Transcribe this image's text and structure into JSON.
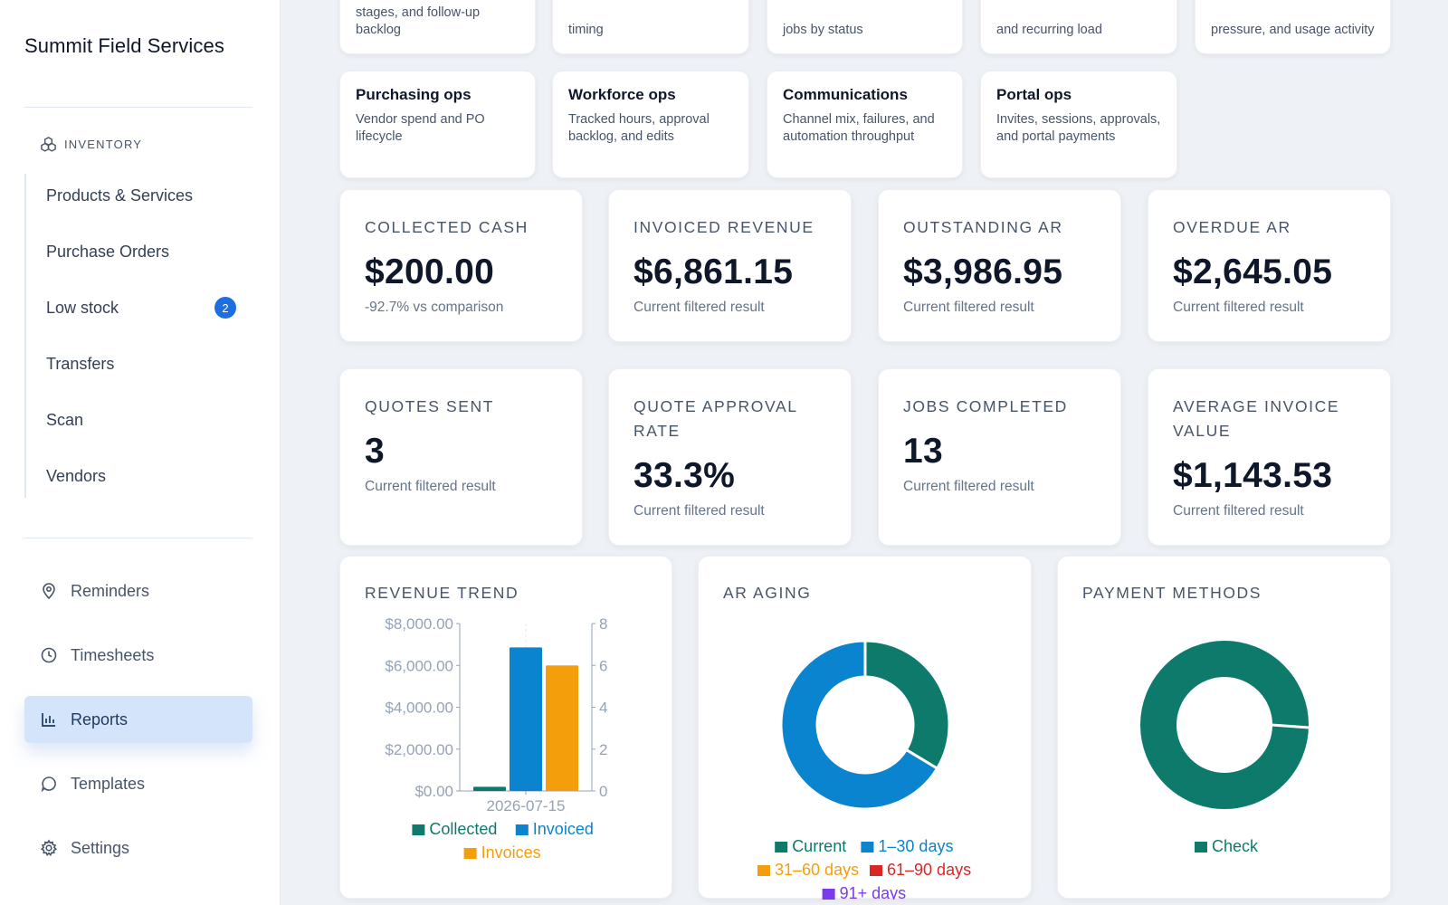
{
  "sidebar": {
    "brand": "Summit Field Services",
    "inventory_label": "INVENTORY",
    "inventory_items": [
      {
        "label": "Products & Services"
      },
      {
        "label": "Purchase Orders"
      },
      {
        "label": "Low stock",
        "badge": "2"
      },
      {
        "label": "Transfers"
      },
      {
        "label": "Scan"
      },
      {
        "label": "Vendors"
      }
    ],
    "nav_items": [
      {
        "label": "Reminders",
        "icon": "map-pin-icon"
      },
      {
        "label": "Timesheets",
        "icon": "clock-icon"
      },
      {
        "label": "Reports",
        "icon": "bar-chart-icon",
        "active": true
      },
      {
        "label": "Templates",
        "icon": "chat-bubble-icon"
      },
      {
        "label": "Settings",
        "icon": "gear-icon"
      }
    ]
  },
  "report_tiles_top_partial": [
    {
      "desc": "stages, and follow-up backlog"
    },
    {
      "desc": "timing"
    },
    {
      "desc": "jobs by status"
    },
    {
      "desc": "and recurring load"
    },
    {
      "desc": "pressure, and usage activity"
    }
  ],
  "report_tiles": [
    {
      "title": "Purchasing ops",
      "desc": "Vendor spend and PO lifecycle"
    },
    {
      "title": "Workforce ops",
      "desc": "Tracked hours, approval backlog, and edits"
    },
    {
      "title": "Communications",
      "desc": "Channel mix, failures, and automation throughput"
    },
    {
      "title": "Portal ops",
      "desc": "Invites, sessions, approvals, and portal payments"
    }
  ],
  "kpis_row1": [
    {
      "label": "COLLECTED CASH",
      "value": "$200.00",
      "sub": "-92.7% vs comparison"
    },
    {
      "label": "INVOICED REVENUE",
      "value": "$6,861.15",
      "sub": "Current filtered result"
    },
    {
      "label": "OUTSTANDING AR",
      "value": "$3,986.95",
      "sub": "Current filtered result"
    },
    {
      "label": "OVERDUE AR",
      "value": "$2,645.05",
      "sub": "Current filtered result"
    }
  ],
  "kpis_row2": [
    {
      "label": "QUOTES SENT",
      "value": "3",
      "sub": "Current filtered result"
    },
    {
      "label": "QUOTE APPROVAL RATE",
      "value": "33.3%",
      "sub": "Current filtered result"
    },
    {
      "label": "JOBS COMPLETED",
      "value": "13",
      "sub": "Current filtered result"
    },
    {
      "label": "AVERAGE INVOICE VALUE",
      "value": "$1,143.53",
      "sub": "Current filtered result"
    }
  ],
  "chart_titles": {
    "revenue_trend": "REVENUE TREND",
    "ar_aging": "AR AGING",
    "payment_methods": "PAYMENT METHODS"
  },
  "colors": {
    "teal": "#0e7a6c",
    "blue": "#0a84cf",
    "orange": "#f59e0b",
    "red": "#dc2626",
    "purple": "#7c3aed",
    "accent": "#1d6fe0"
  },
  "chart_data": [
    {
      "type": "bar",
      "title": "REVENUE TREND",
      "categories": [
        "2026-07-15"
      ],
      "series": [
        {
          "name": "Collected",
          "values": [
            200
          ],
          "axis": "left",
          "color": "#0e7a6c"
        },
        {
          "name": "Invoiced",
          "values": [
            6861.15
          ],
          "axis": "left",
          "color": "#0a84cf"
        },
        {
          "name": "Invoices",
          "values": [
            6
          ],
          "axis": "right",
          "color": "#f59e0b"
        }
      ],
      "y_left_ticks": [
        "$0.00",
        "$2,000.00",
        "$4,000.00",
        "$6,000.00",
        "$8,000.00"
      ],
      "y_right_ticks": [
        "0",
        "2",
        "4",
        "6",
        "8"
      ],
      "ylim_left": [
        0,
        8000
      ],
      "ylim_right": [
        0,
        8
      ],
      "legend_position": "bottom"
    },
    {
      "type": "pie",
      "title": "AR AGING",
      "labels": [
        "Current",
        "1-30 days",
        "31-60 days",
        "61-90 days",
        "91+ days"
      ],
      "legend_labels": [
        "Current",
        "1–30 days",
        "31–60 days",
        "61–90 days",
        "91+ days"
      ],
      "values": [
        1341.9,
        2645.05,
        0,
        0,
        0
      ],
      "colors": [
        "#0e7a6c",
        "#0a84cf",
        "#f59e0b",
        "#dc2626",
        "#7c3aed"
      ],
      "legend_position": "bottom"
    },
    {
      "type": "pie",
      "title": "PAYMENT METHODS",
      "labels": [
        "Check"
      ],
      "values": [
        200
      ],
      "colors": [
        "#0e7a6c"
      ],
      "legend_position": "bottom"
    }
  ]
}
